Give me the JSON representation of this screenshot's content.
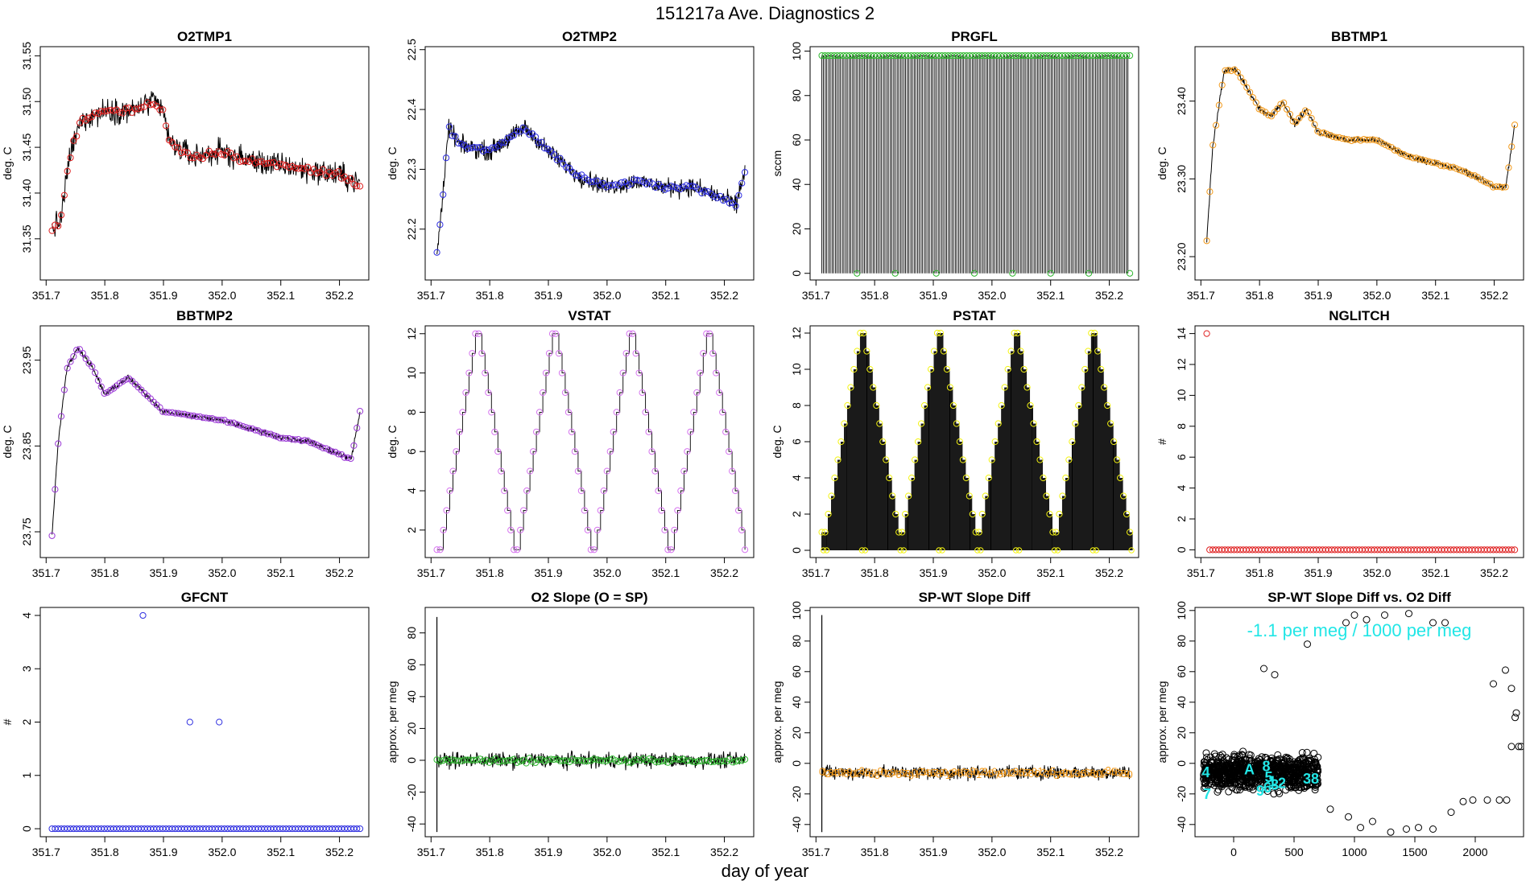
{
  "figure_title": "151217a   Ave. Diagnostics 2",
  "x_label": "day of year",
  "colors": {
    "trace": "#000000",
    "red": "#df1f1f",
    "blue": "#2e2ee0",
    "green": "#2fb82f",
    "orange": "#f29a1c",
    "purple": "#9b3ad6",
    "violet": "#d675ef",
    "yellow": "#f3f312",
    "cyan": "#22e6e6"
  },
  "chart_data": [
    {
      "id": "o2tmp1",
      "type": "line",
      "title": "O2TMP1",
      "ylabel": "deg. C",
      "xlim": [
        351.69,
        352.25
      ],
      "ylim": [
        31.305,
        31.56
      ],
      "xticks": [
        "351.7",
        "351.8",
        "351.9",
        "352.0",
        "352.1",
        "352.2"
      ],
      "yticks": [
        "31.35",
        "31.40",
        "31.45",
        "31.50",
        "31.55"
      ],
      "marker": "circle",
      "marker_color": "red",
      "trend": [
        [
          351.71,
          31.36
        ],
        [
          351.725,
          31.37
        ],
        [
          351.74,
          31.44
        ],
        [
          351.76,
          31.48
        ],
        [
          351.8,
          31.49
        ],
        [
          351.85,
          31.49
        ],
        [
          351.88,
          31.5
        ],
        [
          351.9,
          31.49
        ],
        [
          351.91,
          31.455
        ],
        [
          351.95,
          31.44
        ],
        [
          352.0,
          31.445
        ],
        [
          352.05,
          31.435
        ],
        [
          352.1,
          31.43
        ],
        [
          352.15,
          31.425
        ],
        [
          352.2,
          31.42
        ],
        [
          352.235,
          31.41
        ]
      ],
      "noise": 0.04
    },
    {
      "id": "o2tmp2",
      "type": "line",
      "title": "O2TMP2",
      "ylabel": "deg. C",
      "xlim": [
        351.69,
        352.25
      ],
      "ylim": [
        22.115,
        22.505
      ],
      "xticks": [
        "351.7",
        "351.8",
        "351.9",
        "352.0",
        "352.1",
        "352.2"
      ],
      "yticks": [
        "22.2",
        "22.3",
        "22.4",
        "22.5"
      ],
      "marker": "circle",
      "marker_color": "blue",
      "trend": [
        [
          351.71,
          22.16
        ],
        [
          351.72,
          22.25
        ],
        [
          351.73,
          22.37
        ],
        [
          351.75,
          22.34
        ],
        [
          351.8,
          22.33
        ],
        [
          351.86,
          22.37
        ],
        [
          351.9,
          22.33
        ],
        [
          351.95,
          22.29
        ],
        [
          352.0,
          22.27
        ],
        [
          352.05,
          22.28
        ],
        [
          352.1,
          22.27
        ],
        [
          352.15,
          22.27
        ],
        [
          352.2,
          22.25
        ],
        [
          352.22,
          22.24
        ],
        [
          352.235,
          22.3
        ]
      ],
      "noise": 0.045
    },
    {
      "id": "prgfl",
      "type": "square_wave",
      "title": "PRGFL",
      "ylabel": "sccm",
      "xlim": [
        351.69,
        352.25
      ],
      "ylim": [
        -3,
        102
      ],
      "xticks": [
        "351.7",
        "351.8",
        "351.9",
        "352.0",
        "352.1",
        "352.2"
      ],
      "yticks": [
        "0",
        "20",
        "40",
        "60",
        "80",
        "100"
      ],
      "high": 98,
      "low": 0,
      "x_start": 351.71,
      "x_end": 352.235,
      "cycles": 90,
      "marker": "circle",
      "marker_color": "green",
      "low_points_x": [
        351.77,
        351.835,
        351.905,
        351.97,
        352.035,
        352.1,
        352.165,
        352.235
      ]
    },
    {
      "id": "bbtmp1",
      "type": "line",
      "title": "BBTMP1",
      "ylabel": "deg. C",
      "xlim": [
        351.69,
        352.25
      ],
      "ylim": [
        23.17,
        23.47
      ],
      "xticks": [
        "351.7",
        "351.8",
        "351.9",
        "352.0",
        "352.1",
        "352.2"
      ],
      "yticks": [
        "23.20",
        "23.30",
        "23.40"
      ],
      "marker": "circle",
      "marker_color": "orange",
      "trend": [
        [
          351.71,
          23.22
        ],
        [
          351.72,
          23.34
        ],
        [
          351.74,
          23.44
        ],
        [
          351.76,
          23.44
        ],
        [
          351.8,
          23.39
        ],
        [
          351.82,
          23.38
        ],
        [
          351.84,
          23.4
        ],
        [
          351.86,
          23.37
        ],
        [
          351.88,
          23.39
        ],
        [
          351.9,
          23.36
        ],
        [
          351.95,
          23.35
        ],
        [
          352.0,
          23.35
        ],
        [
          352.05,
          23.33
        ],
        [
          352.1,
          23.32
        ],
        [
          352.15,
          23.31
        ],
        [
          352.2,
          23.29
        ],
        [
          352.22,
          23.29
        ],
        [
          352.235,
          23.37
        ]
      ],
      "noise": 0.012
    },
    {
      "id": "bbtmp2",
      "type": "line",
      "title": "BBTMP2",
      "ylabel": "deg. C",
      "xlim": [
        351.69,
        352.25
      ],
      "ylim": [
        23.72,
        23.99
      ],
      "xticks": [
        "351.7",
        "351.8",
        "351.9",
        "352.0",
        "352.1",
        "352.2"
      ],
      "yticks": [
        "23.75",
        "23.85",
        "23.95"
      ],
      "marker": "circle",
      "marker_color": "purple",
      "trend": [
        [
          351.71,
          23.745
        ],
        [
          351.72,
          23.85
        ],
        [
          351.735,
          23.94
        ],
        [
          351.755,
          23.965
        ],
        [
          351.78,
          23.94
        ],
        [
          351.8,
          23.91
        ],
        [
          351.84,
          23.93
        ],
        [
          351.9,
          23.89
        ],
        [
          351.95,
          23.885
        ],
        [
          352.0,
          23.88
        ],
        [
          352.05,
          23.87
        ],
        [
          352.1,
          23.86
        ],
        [
          352.15,
          23.855
        ],
        [
          352.2,
          23.84
        ],
        [
          352.22,
          23.835
        ],
        [
          352.235,
          23.89
        ]
      ],
      "noise": 0.01
    },
    {
      "id": "vstat",
      "type": "step",
      "title": "VSTAT",
      "ylabel": "deg. C",
      "xlim": [
        351.69,
        352.25
      ],
      "ylim": [
        0.6,
        12.4
      ],
      "xticks": [
        "351.7",
        "351.8",
        "351.9",
        "352.0",
        "352.1",
        "352.2"
      ],
      "yticks": [
        "2",
        "4",
        "6",
        "8",
        "10",
        "12"
      ],
      "marker": "circle",
      "marker_color": "violet",
      "x_start": 351.71,
      "x_end": 352.235,
      "sequence": [
        1,
        1,
        2,
        3,
        4,
        5,
        6,
        7,
        8,
        9,
        10,
        11,
        12,
        12,
        11,
        10,
        9,
        8,
        7,
        6,
        5,
        4,
        3,
        2,
        1,
        1,
        2,
        3,
        4,
        5,
        6,
        7,
        8,
        9,
        10,
        11,
        12,
        12,
        11,
        10,
        9,
        8,
        7,
        6,
        5,
        4,
        3,
        2,
        1,
        1,
        2,
        3,
        4,
        5,
        6,
        7,
        8,
        9,
        10,
        11,
        12,
        12,
        11,
        10,
        9,
        8,
        7,
        6,
        5,
        4,
        3,
        2,
        1,
        1,
        2,
        3,
        4,
        5,
        6,
        7,
        8,
        9,
        10,
        11,
        12,
        12,
        11,
        10,
        9,
        8,
        7,
        6,
        5,
        4,
        3,
        2,
        1
      ]
    },
    {
      "id": "pstat",
      "type": "comb",
      "title": "PSTAT",
      "ylabel": "deg. C",
      "xlim": [
        351.69,
        352.25
      ],
      "ylim": [
        -0.4,
        12.4
      ],
      "xticks": [
        "351.7",
        "351.8",
        "351.9",
        "352.0",
        "352.1",
        "352.2"
      ],
      "yticks": [
        "0",
        "2",
        "4",
        "6",
        "8",
        "10",
        "12"
      ],
      "marker": "circle",
      "marker_color": "yellow",
      "x_start": 351.71,
      "x_end": 352.235,
      "sequence": [
        1,
        1,
        2,
        3,
        4,
        5,
        6,
        7,
        8,
        9,
        10,
        11,
        12,
        12,
        11,
        10,
        9,
        8,
        7,
        6,
        5,
        4,
        3,
        2,
        1,
        1,
        2,
        3,
        4,
        5,
        6,
        7,
        8,
        9,
        10,
        11,
        12,
        12,
        11,
        10,
        9,
        8,
        7,
        6,
        5,
        4,
        3,
        2,
        1,
        1,
        2,
        3,
        4,
        5,
        6,
        7,
        8,
        9,
        10,
        11,
        12,
        12,
        11,
        10,
        9,
        8,
        7,
        6,
        5,
        4,
        3,
        2,
        1,
        1,
        2,
        3,
        4,
        5,
        6,
        7,
        8,
        9,
        10,
        11,
        12,
        12,
        11,
        10,
        9,
        8,
        7,
        6,
        5,
        4,
        3,
        2,
        1
      ]
    },
    {
      "id": "nglitch",
      "type": "scatter",
      "title": "NGLITCH",
      "ylabel": "#",
      "xlim": [
        351.69,
        352.25
      ],
      "ylim": [
        -0.5,
        14.5
      ],
      "xticks": [
        "351.7",
        "351.8",
        "351.9",
        "352.0",
        "352.1",
        "352.2"
      ],
      "yticks": [
        "0",
        "2",
        "4",
        "6",
        "8",
        "10",
        "12",
        "14"
      ],
      "marker": "circle",
      "marker_color": "red",
      "x_start": 351.715,
      "x_end": 352.235,
      "count": 101,
      "baseline": 0,
      "outliers": [
        [
          351.71,
          14
        ]
      ]
    },
    {
      "id": "gfcnt",
      "type": "scatter",
      "title": "GFCNT",
      "ylabel": "#",
      "xlim": [
        351.69,
        352.25
      ],
      "ylim": [
        -0.15,
        4.15
      ],
      "xticks": [
        "351.7",
        "351.8",
        "351.9",
        "352.0",
        "352.1",
        "352.2"
      ],
      "yticks": [
        "0",
        "1",
        "2",
        "3",
        "4"
      ],
      "marker": "circle",
      "marker_color": "blue",
      "x_start": 351.71,
      "x_end": 352.235,
      "count": 101,
      "baseline": 0,
      "outliers": [
        [
          351.865,
          4
        ],
        [
          351.945,
          2
        ],
        [
          351.995,
          2
        ]
      ]
    },
    {
      "id": "o2slope",
      "type": "line",
      "title": "O2 Slope (O = SP)",
      "ylabel": "approx. per meg",
      "xlim": [
        351.69,
        352.25
      ],
      "ylim": [
        -48,
        96
      ],
      "xticks": [
        "351.7",
        "351.8",
        "351.9",
        "352.0",
        "352.1",
        "352.2"
      ],
      "yticks": [
        "-40",
        "-20",
        "0",
        "20",
        "40",
        "60",
        "80"
      ],
      "marker": "circle",
      "marker_color": "green",
      "trend": [
        [
          351.71,
          0
        ],
        [
          352.235,
          0
        ]
      ],
      "noise": 14,
      "spike": [
        351.71,
        -45,
        90
      ]
    },
    {
      "id": "spwt",
      "type": "line",
      "title": "SP-WT Slope Diff",
      "ylabel": "approx. per meg",
      "xlim": [
        351.69,
        352.25
      ],
      "ylim": [
        -48,
        102
      ],
      "xticks": [
        "351.7",
        "351.8",
        "351.9",
        "352.0",
        "352.1",
        "352.2"
      ],
      "yticks": [
        "-40",
        "-20",
        "0",
        "20",
        "40",
        "60",
        "80",
        "100"
      ],
      "marker": "digit",
      "marker_color": "orange",
      "trend": [
        [
          351.71,
          -6
        ],
        [
          352.235,
          -6
        ]
      ],
      "noise": 14,
      "spike": [
        351.71,
        -45,
        97
      ]
    },
    {
      "id": "spwt_vs_o2",
      "type": "scatter_cluster",
      "title": "SP-WT Slope Diff vs. O2 Diff",
      "ylabel": "approx. per meg",
      "xlim": [
        -320,
        2400
      ],
      "ylim": [
        -48,
        102
      ],
      "xticks": [
        "0",
        "500",
        "1000",
        "1500",
        "2000"
      ],
      "xtick_values": [
        0,
        500,
        1000,
        1500,
        2000
      ],
      "yticks": [
        "-40",
        "-20",
        "0",
        "20",
        "40",
        "60",
        "80",
        "100"
      ],
      "annotation": "-1.1 per meg / 1000 per meg",
      "cluster": {
        "x_range": [
          -250,
          700
        ],
        "y_center": -6,
        "y_spread": 16
      },
      "scattered_points": [
        [
          250,
          62
        ],
        [
          340,
          58
        ],
        [
          610,
          78
        ],
        [
          800,
          -30
        ],
        [
          950,
          -35
        ],
        [
          1050,
          -42
        ],
        [
          1150,
          -38
        ],
        [
          1300,
          -45
        ],
        [
          1430,
          -43
        ],
        [
          1530,
          -42
        ],
        [
          1650,
          -43
        ],
        [
          1800,
          -32
        ],
        [
          1900,
          -25
        ],
        [
          1980,
          -24
        ],
        [
          2100,
          -24
        ],
        [
          2200,
          -24
        ],
        [
          2260,
          -24
        ],
        [
          2330,
          30
        ],
        [
          2340,
          33
        ],
        [
          2360,
          11
        ],
        [
          2380,
          11
        ],
        [
          2300,
          11
        ],
        [
          2150,
          52
        ],
        [
          2250,
          61
        ],
        [
          2300,
          49
        ],
        [
          1750,
          92
        ],
        [
          1650,
          92
        ],
        [
          1450,
          98
        ],
        [
          1250,
          97
        ],
        [
          1100,
          94
        ],
        [
          930,
          92
        ],
        [
          1000,
          97
        ]
      ],
      "cluster_labels": [
        "4",
        "7",
        "A",
        "9",
        "8",
        "3",
        "2",
        "6",
        "38",
        "1",
        "5"
      ]
    }
  ]
}
